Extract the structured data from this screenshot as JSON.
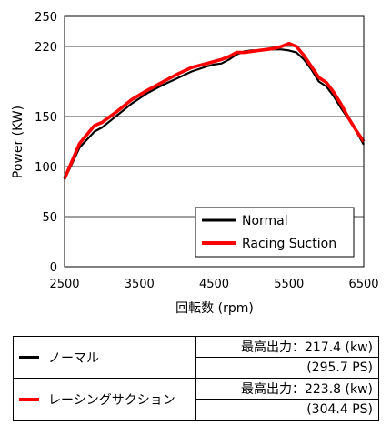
{
  "chart_data": {
    "type": "line",
    "xlabel": "回転数 (rpm)",
    "ylabel": "Power (KW)",
    "xlim": [
      2500,
      6500
    ],
    "ylim": [
      0,
      250
    ],
    "xticks": [
      "2500",
      "3500",
      "4500",
      "5500",
      "6500"
    ],
    "yticks": [
      "0",
      "50",
      "100",
      "150",
      "220",
      "250"
    ],
    "grid": true,
    "legend_position": "bottom-right",
    "series": [
      {
        "name": "Normal",
        "color": "#000000",
        "x": [
          2500,
          2700,
          2900,
          3000,
          3200,
          3400,
          3600,
          3800,
          4000,
          4200,
          4400,
          4500,
          4600,
          4700,
          4800,
          4900,
          5000,
          5100,
          5200,
          5300,
          5400,
          5500,
          5600,
          5700,
          5800,
          5900,
          6000,
          6100,
          6200,
          6300,
          6400,
          6500
        ],
        "y": [
          87,
          119,
          135,
          139,
          151,
          163,
          173,
          181,
          188,
          195,
          200,
          202,
          203,
          207,
          212,
          215,
          216,
          216,
          217,
          217,
          217,
          216,
          214,
          207,
          197,
          185,
          180,
          170,
          158,
          147,
          135,
          122
        ]
      },
      {
        "name": "Racing Suction",
        "color": "#ff0000",
        "x": [
          2500,
          2700,
          2900,
          3000,
          3200,
          3400,
          3600,
          3800,
          4000,
          4200,
          4400,
          4500,
          4600,
          4700,
          4800,
          4900,
          5000,
          5100,
          5200,
          5300,
          5400,
          5500,
          5600,
          5700,
          5800,
          5900,
          6000,
          6100,
          6200,
          6300,
          6400,
          6500
        ],
        "y": [
          88,
          123,
          141,
          144,
          155,
          167,
          176,
          184,
          192,
          199,
          203,
          205,
          207,
          210,
          214,
          214,
          215,
          216,
          217,
          218,
          220,
          223,
          220,
          211,
          200,
          189,
          184,
          174,
          162,
          148,
          136,
          125
        ]
      }
    ]
  },
  "table": {
    "rows": [
      {
        "name": "ノーマル",
        "color": "#000000",
        "max_label": "最高出力：217.4 (kw)",
        "ps": "(295.7 PS)"
      },
      {
        "name": "レーシングサクション",
        "color": "#ff0000",
        "max_label": "最高出力：223.8 (kw)",
        "ps": "(304.4 PS)"
      }
    ]
  }
}
